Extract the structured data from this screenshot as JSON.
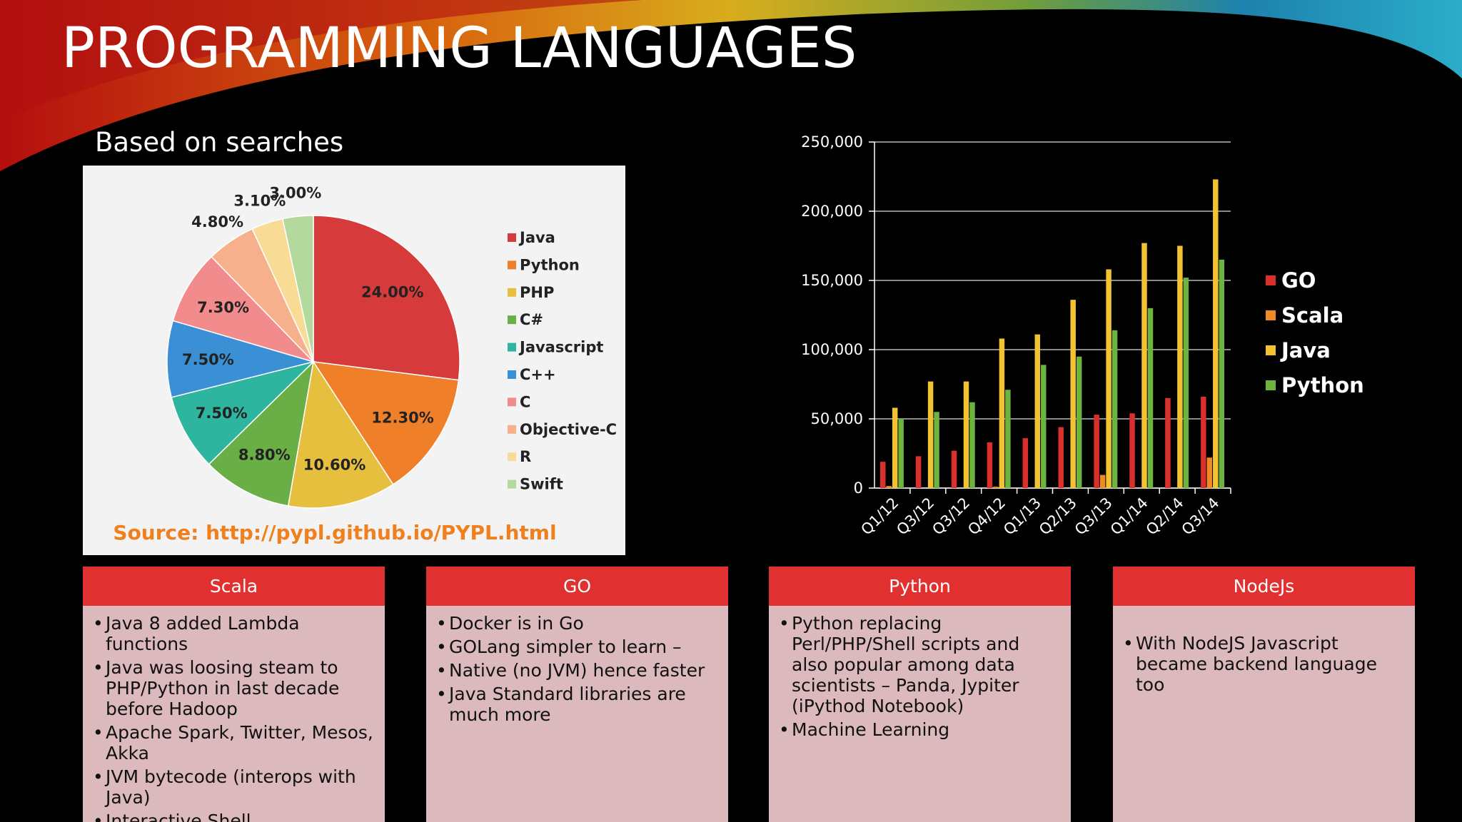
{
  "title": "PROGRAMMING LANGUAGES",
  "chart_data": [
    {
      "type": "pie",
      "title": "Based on searches",
      "categories": [
        "Java",
        "Python",
        "PHP",
        "C#",
        "Javascript",
        "C++",
        "C",
        "Objective-C",
        "R",
        "Swift"
      ],
      "values": [
        24.0,
        12.3,
        10.6,
        8.8,
        7.5,
        7.5,
        7.3,
        4.8,
        3.1,
        3.0
      ],
      "value_labels": [
        "24.00%",
        "12.30%",
        "10.60%",
        "8.80%",
        "7.50%",
        "7.50%",
        "7.30%",
        "4.80%",
        "3.10%",
        "3.00%"
      ],
      "colors": [
        "#d63a3a",
        "#f07f2a",
        "#e6bf3e",
        "#6aae46",
        "#2db5a0",
        "#3b8fd4",
        "#f28c8c",
        "#f6b08c",
        "#f8dc96",
        "#b3d99c"
      ],
      "note": "Source: http://pypl.github.io/PYPL.html"
    },
    {
      "type": "bar",
      "categories": [
        "Q1/12",
        "Q3/12",
        "Q3/12",
        "Q4/12",
        "Q1/13",
        "Q2/13",
        "Q3/13",
        "Q1/14",
        "Q2/14",
        "Q3/14"
      ],
      "series": [
        {
          "name": "GO",
          "color": "#d9302c",
          "values": [
            19000,
            23000,
            27000,
            33000,
            36000,
            44000,
            53000,
            54000,
            65000,
            66000
          ]
        },
        {
          "name": "Scala",
          "color": "#f08a24",
          "values": [
            1500,
            0,
            0,
            1000,
            0,
            0,
            9500,
            0,
            0,
            22000
          ]
        },
        {
          "name": "Java",
          "color": "#f2c230",
          "values": [
            58000,
            77000,
            77000,
            108000,
            111000,
            136000,
            158000,
            177000,
            175000,
            223000
          ]
        },
        {
          "name": "Python",
          "color": "#6cb33f",
          "values": [
            50000,
            55000,
            62000,
            71000,
            89000,
            95000,
            114000,
            130000,
            152000,
            165000
          ]
        }
      ],
      "ylim": [
        0,
        250000
      ],
      "yticks": [
        0,
        {
          "value": 50000,
          "label": "50,000"
        },
        {
          "value": 100000,
          "label": "100,000"
        },
        {
          "value": 150000,
          "label": "150,000"
        },
        {
          "value": 200000,
          "label": "200,000"
        },
        {
          "value": 250000,
          "label": "250,000"
        }
      ],
      "grid": true
    }
  ],
  "cards": [
    {
      "title": "Scala",
      "items": [
        "Java 8 added Lambda functions",
        "Java was loosing steam to PHP/Python in last decade before Hadoop",
        "Apache Spark, Twitter, Mesos, Akka",
        "JVM bytecode (interops with Java)",
        "Interactive Shell"
      ]
    },
    {
      "title": "GO",
      "items": [
        "Docker is in Go",
        "GOLang simpler to learn –",
        "Native (no JVM) hence faster",
        "Java Standard libraries are much more"
      ]
    },
    {
      "title": "Python",
      "items": [
        "Python replacing Perl/PHP/Shell scripts and also popular among data scientists – Panda, Jypiter (iPythod Notebook)",
        "Machine Learning"
      ]
    },
    {
      "title": "NodeJs",
      "items": [
        "With NodeJS Javascript became backend language too"
      ]
    }
  ]
}
